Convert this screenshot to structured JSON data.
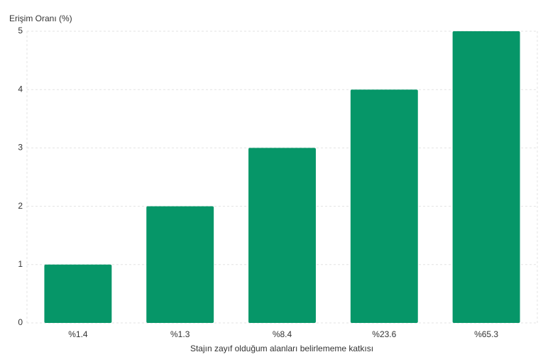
{
  "chart_data": {
    "type": "bar",
    "y_label": "Erişim Oranı (%)",
    "x_label": "Stajın zayıf olduğum alanları belirlememe katkısı",
    "categories": [
      "%1.4",
      "%1.3",
      "%8.4",
      "%23.6",
      "%65.3"
    ],
    "values": [
      1,
      2,
      3,
      4,
      5
    ],
    "color": "#069668",
    "ylim": [
      0,
      5
    ],
    "yticks": [
      0,
      1,
      2,
      3,
      4,
      5
    ],
    "grid": true
  }
}
